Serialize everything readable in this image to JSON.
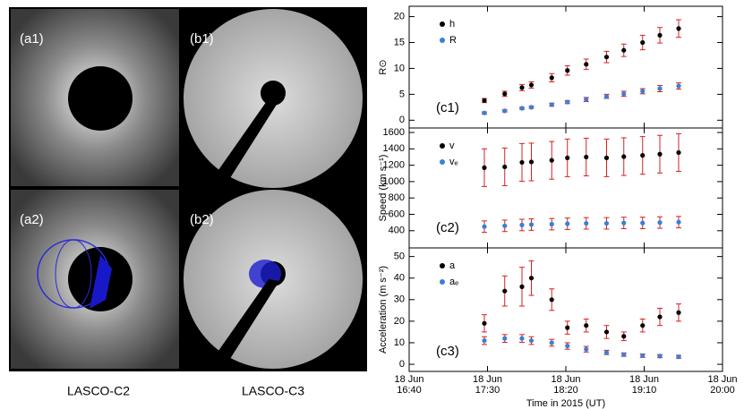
{
  "images": [
    {
      "label": "(a1)"
    },
    {
      "label": "(b1)"
    },
    {
      "label": "(a2)"
    },
    {
      "label": "(b2)"
    }
  ],
  "captions": [
    "LASCO-C2",
    "LASCO-C3"
  ],
  "chart_data": [
    {
      "type": "scatter",
      "panel_label": "(c1)",
      "ylabel": "R⊙",
      "x": [
        "18 Jun 17:28",
        "18 Jun 17:41",
        "18 Jun 17:52",
        "18 Jun 17:58",
        "18 Jun 18:11",
        "18 Jun 18:21",
        "18 Jun 18:33",
        "18 Jun 18:46",
        "18 Jun 18:57",
        "18 Jun 19:09",
        "18 Jun 19:20",
        "18 Jun 19:32"
      ],
      "ylim": [
        -1.5,
        22
      ],
      "yticks": [
        0,
        5,
        10,
        15,
        20
      ],
      "error_color": "#d62020",
      "series": [
        {
          "name": "h",
          "color": "#000000",
          "values": [
            3.8,
            5.1,
            6.3,
            6.8,
            8.2,
            9.6,
            10.8,
            12.2,
            13.5,
            15.0,
            16.4,
            17.7
          ],
          "errors": [
            0.4,
            0.5,
            0.6,
            0.6,
            0.8,
            0.9,
            1.0,
            1.1,
            1.2,
            1.4,
            1.5,
            1.7
          ]
        },
        {
          "name": "R",
          "color": "#3a7fd5",
          "values": [
            1.4,
            1.8,
            2.3,
            2.5,
            3.0,
            3.5,
            4.0,
            4.6,
            5.1,
            5.6,
            6.1,
            6.6
          ],
          "errors": [
            0.2,
            0.2,
            0.2,
            0.2,
            0.3,
            0.3,
            0.4,
            0.4,
            0.5,
            0.5,
            0.6,
            0.6
          ]
        }
      ]
    },
    {
      "type": "scatter",
      "panel_label": "(c2)",
      "ylabel": "Speed (km s⁻¹)",
      "x": [
        "18 Jun 17:28",
        "18 Jun 17:41",
        "18 Jun 17:52",
        "18 Jun 17:58",
        "18 Jun 18:11",
        "18 Jun 18:21",
        "18 Jun 18:33",
        "18 Jun 18:46",
        "18 Jun 18:57",
        "18 Jun 19:09",
        "18 Jun 19:20",
        "18 Jun 19:32"
      ],
      "ylim": [
        190,
        1655
      ],
      "yticks": [
        400,
        600,
        800,
        1000,
        1200,
        1400,
        1600
      ],
      "error_color": "#d62020",
      "series": [
        {
          "name": "v",
          "color": "#000000",
          "values": [
            1170,
            1180,
            1235,
            1240,
            1260,
            1290,
            1300,
            1290,
            1305,
            1320,
            1335,
            1355
          ],
          "errors": [
            230,
            230,
            230,
            230,
            230,
            230,
            230,
            230,
            230,
            230,
            230,
            230
          ]
        },
        {
          "name": "vₑ",
          "color": "#3a7fd5",
          "values": [
            450,
            460,
            470,
            475,
            480,
            485,
            490,
            490,
            495,
            495,
            500,
            505
          ],
          "errors": [
            70,
            70,
            70,
            70,
            70,
            70,
            70,
            70,
            70,
            70,
            70,
            70
          ]
        }
      ]
    },
    {
      "type": "scatter",
      "panel_label": "(c3)",
      "ylabel": "Acceleration (m s⁻²)",
      "xlabel": "Time in 2015 (UT)",
      "x": [
        "18 Jun 17:28",
        "18 Jun 17:41",
        "18 Jun 17:52",
        "18 Jun 17:58",
        "18 Jun 18:11",
        "18 Jun 18:21",
        "18 Jun 18:33",
        "18 Jun 18:46",
        "18 Jun 18:57",
        "18 Jun 19:09",
        "18 Jun 19:20",
        "18 Jun 19:32"
      ],
      "xlim": [
        "18 Jun 16:40",
        "18 Jun 20:00"
      ],
      "xticks": [
        {
          "value": "18 Jun 16:40",
          "label": "18 Jun\n16:40"
        },
        {
          "value": "18 Jun 17:30",
          "label": "18 Jun\n17:30"
        },
        {
          "value": "18 Jun 18:20",
          "label": "18 Jun\n18:20"
        },
        {
          "value": "18 Jun 19:10",
          "label": "18 Jun\n19:10"
        },
        {
          "value": "18 Jun 20:00",
          "label": "18 Jun\n20:00"
        }
      ],
      "ylim": [
        -3.3,
        54
      ],
      "yticks": [
        0,
        10,
        20,
        30,
        40,
        50
      ],
      "error_color": "#d62020",
      "series": [
        {
          "name": "a",
          "color": "#000000",
          "values": [
            19,
            34,
            36,
            40,
            30,
            17,
            18,
            15,
            13,
            18,
            22,
            24
          ],
          "errors": [
            4,
            7,
            9,
            8,
            5,
            3,
            3,
            3,
            2,
            3,
            4,
            4
          ]
        },
        {
          "name": "aₑ",
          "color": "#3a7fd5",
          "values": [
            11,
            12,
            12,
            11,
            10,
            8.5,
            7,
            5.5,
            4.5,
            4,
            3.8,
            3.5
          ],
          "errors": [
            1.8,
            1.8,
            1.8,
            1.8,
            1.6,
            1.5,
            1.3,
            1.0,
            0.8,
            0.8,
            0.7,
            0.7
          ]
        }
      ]
    }
  ]
}
